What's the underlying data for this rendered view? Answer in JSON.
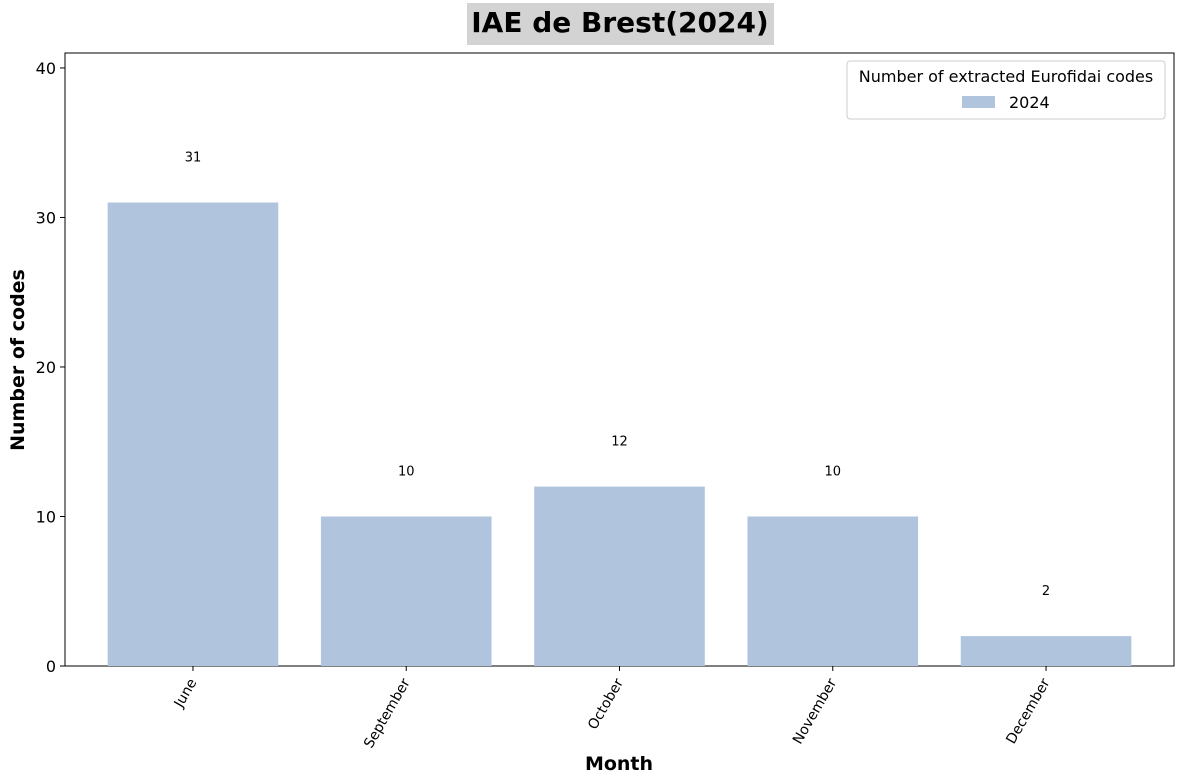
{
  "chart_data": {
    "type": "bar",
    "title": "IAE de Brest(2024)",
    "xlabel": "Month",
    "ylabel": "Number of codes",
    "categories": [
      "June",
      "September",
      "October",
      "November",
      "December"
    ],
    "series": [
      {
        "name": "2024",
        "values": [
          31,
          10,
          12,
          10,
          2
        ],
        "color": "#b0c4de"
      }
    ],
    "data_labels": [
      "31",
      "10",
      "12",
      "10",
      "2"
    ],
    "ylim": [
      0,
      41
    ],
    "yticks": [
      0,
      10,
      20,
      30,
      40
    ],
    "ytick_labels": [
      "0",
      "10",
      "20",
      "30",
      "40"
    ],
    "xtick_rotation": -60,
    "grid": false,
    "legend": {
      "title": "Number of extracted Eurofidai codes",
      "placement": "top-right"
    },
    "title_background": "#d3d3d3"
  }
}
